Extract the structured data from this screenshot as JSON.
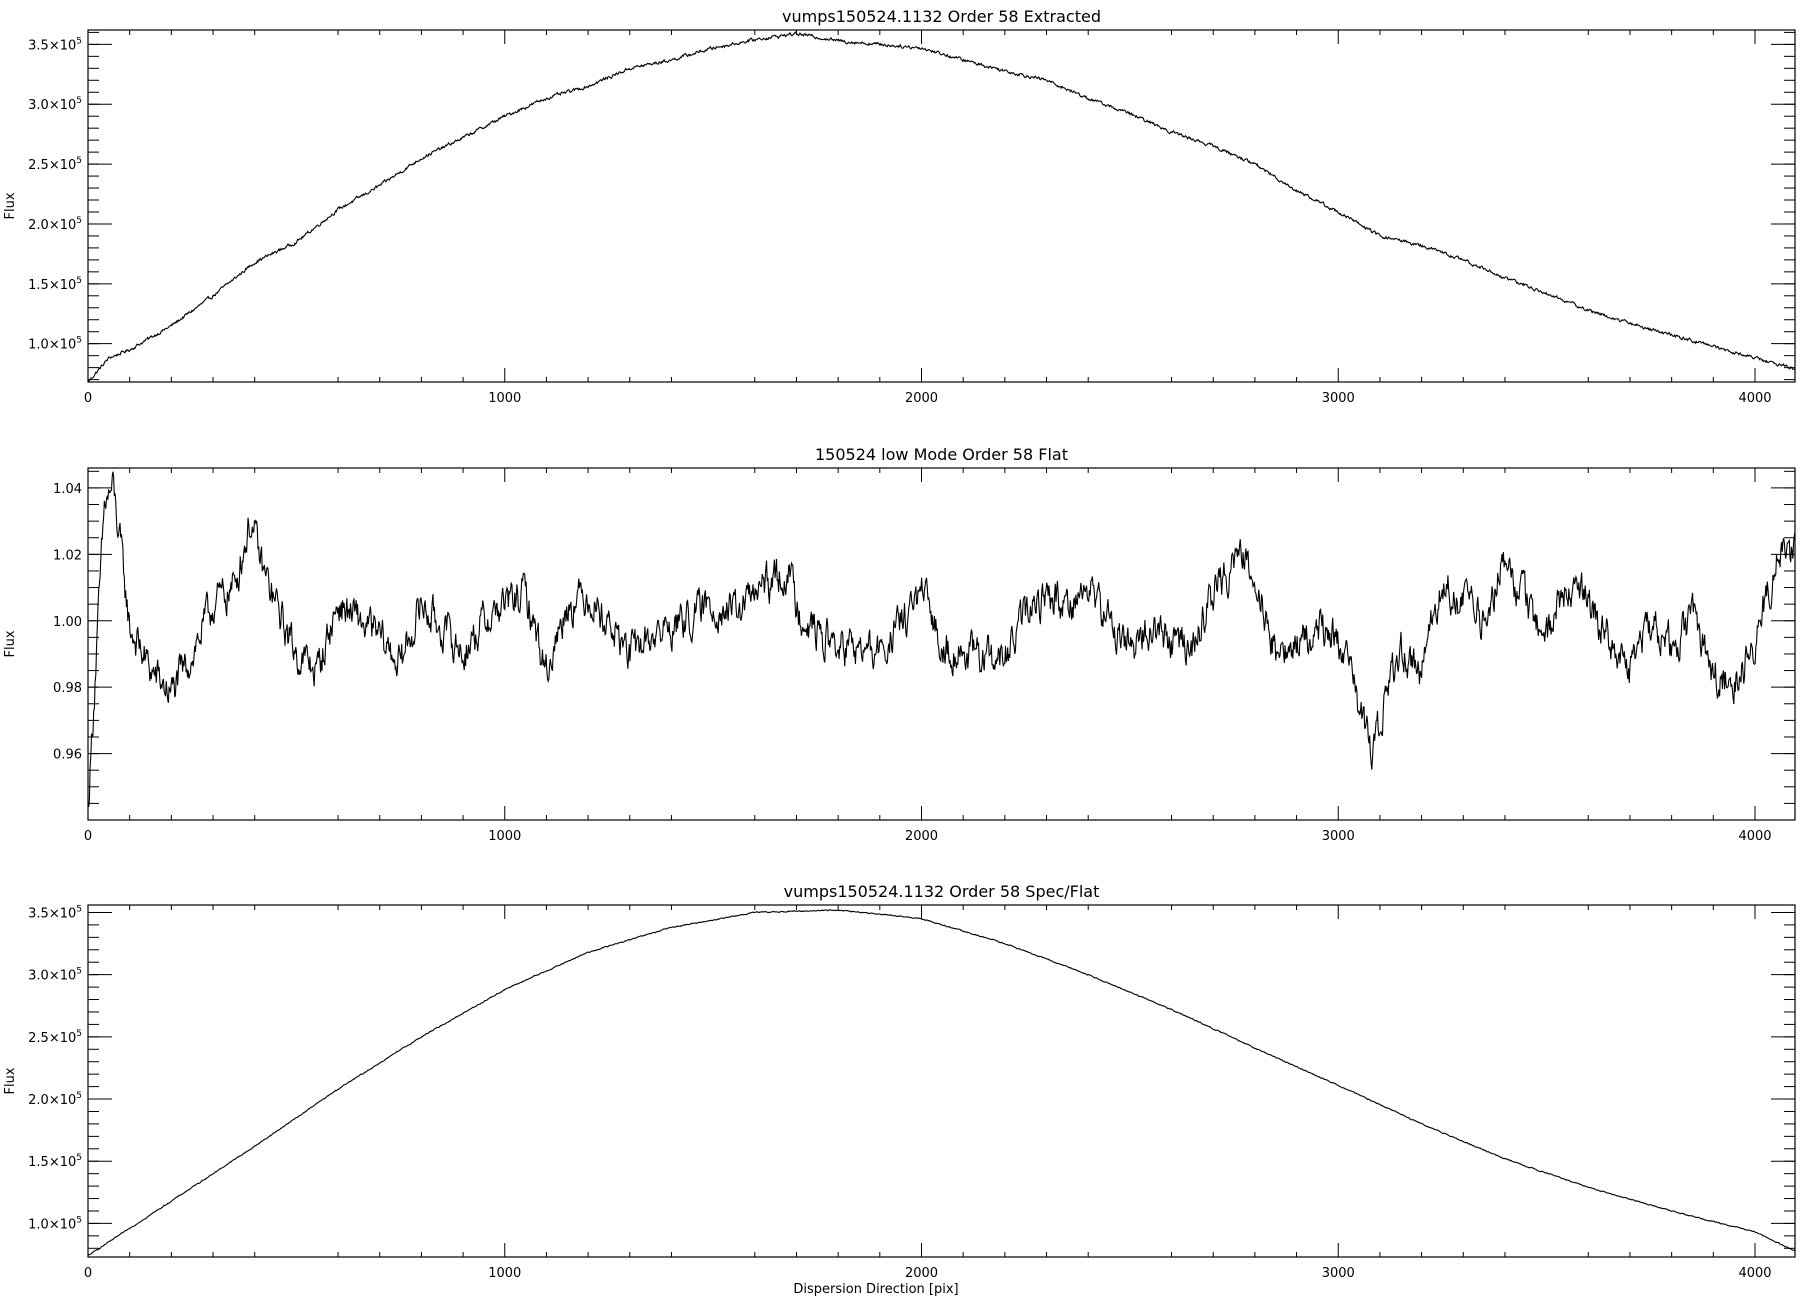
{
  "figure": {
    "xlabel": "Dispersion Direction [pix]"
  },
  "chart_data": [
    {
      "type": "line",
      "title": "vumps150524.1132 Order 58 Extracted",
      "ylabel": "Flux",
      "xlim": [
        0,
        4096
      ],
      "ylim": [
        68000,
        362000
      ],
      "grid": false,
      "x_ticks": [
        0,
        1000,
        2000,
        3000,
        4000
      ],
      "x_tick_labels": [
        "0",
        "1000",
        "2000",
        "3000",
        "4000"
      ],
      "y_ticks": [
        100000,
        150000,
        200000,
        250000,
        300000,
        350000
      ],
      "y_tick_labels": [
        [
          "1.0×10",
          "5"
        ],
        [
          "1.5×10",
          "5"
        ],
        [
          "2.0×10",
          "5"
        ],
        [
          "2.5×10",
          "5"
        ],
        [
          "3.0×10",
          "5"
        ],
        [
          "3.5×10",
          "5"
        ]
      ],
      "y_minor_step": 10000,
      "x_minor_step": 100,
      "noise_amp": 1100,
      "series": [
        {
          "x": [
            0,
            50,
            100,
            200,
            300,
            400,
            500,
            600,
            700,
            800,
            900,
            1000,
            1100,
            1200,
            1300,
            1400,
            1500,
            1600,
            1700,
            1800,
            1900,
            2000,
            2100,
            2200,
            2300,
            2400,
            2500,
            2600,
            2700,
            2800,
            2900,
            3000,
            3100,
            3200,
            3300,
            3400,
            3500,
            3600,
            3700,
            3800,
            3900,
            4000,
            4096
          ],
          "values": [
            68000,
            88000,
            95000,
            115000,
            140000,
            168000,
            185000,
            212000,
            232000,
            255000,
            272000,
            290000,
            305000,
            315000,
            330000,
            337000,
            347000,
            354000,
            359000,
            353000,
            350000,
            347000,
            337000,
            328000,
            320000,
            305000,
            292000,
            277000,
            265000,
            250000,
            228000,
            210000,
            190000,
            182000,
            170000,
            155000,
            142000,
            128000,
            117000,
            107000,
            98000,
            88000,
            79000
          ]
        }
      ]
    },
    {
      "type": "line",
      "title": "150524 low Mode Order 58 Flat",
      "ylabel": "Flux",
      "xlim": [
        0,
        4096
      ],
      "ylim": [
        0.94,
        1.046
      ],
      "grid": false,
      "x_ticks": [
        0,
        1000,
        2000,
        3000,
        4000
      ],
      "x_tick_labels": [
        "0",
        "1000",
        "2000",
        "3000",
        "4000"
      ],
      "y_ticks": [
        0.96,
        0.98,
        1.0,
        1.02,
        1.04
      ],
      "y_tick_labels": [
        [
          "0.96",
          ""
        ],
        [
          "0.98",
          ""
        ],
        [
          "1.00",
          ""
        ],
        [
          "1.02",
          ""
        ],
        [
          "1.04",
          ""
        ]
      ],
      "y_minor_step": 0.005,
      "x_minor_step": 100,
      "noise_amp": 0.0045,
      "series": [
        {
          "x": [
            0,
            20,
            40,
            60,
            80,
            100,
            150,
            200,
            250,
            300,
            350,
            390,
            420,
            450,
            500,
            550,
            600,
            700,
            750,
            800,
            900,
            950,
            1000,
            1050,
            1100,
            1150,
            1200,
            1300,
            1350,
            1400,
            1500,
            1550,
            1600,
            1680,
            1700,
            1750,
            1800,
            1900,
            2000,
            2050,
            2100,
            2200,
            2250,
            2300,
            2350,
            2400,
            2450,
            2500,
            2550,
            2600,
            2650,
            2700,
            2760,
            2800,
            2850,
            2900,
            2950,
            3000,
            3050,
            3080,
            3100,
            3150,
            3200,
            3250,
            3300,
            3350,
            3400,
            3450,
            3500,
            3550,
            3600,
            3650,
            3700,
            3750,
            3800,
            3850,
            3900,
            3950,
            4000,
            4050,
            4096
          ],
          "values": [
            0.943,
            0.99,
            1.035,
            1.04,
            1.02,
            0.998,
            0.985,
            0.978,
            0.99,
            1.005,
            1.01,
            1.03,
            1.015,
            1.005,
            0.99,
            0.985,
            1.005,
            0.995,
            0.987,
            1.005,
            0.99,
            1.0,
            1.005,
            1.008,
            0.985,
            1.005,
            1.008,
            0.99,
            0.995,
            0.998,
            1.005,
            1.002,
            1.008,
            1.015,
            1.005,
            0.996,
            0.992,
            0.99,
            1.008,
            0.993,
            0.99,
            0.988,
            1.002,
            1.008,
            1.005,
            1.01,
            1.0,
            0.992,
            0.998,
            0.994,
            0.992,
            1.008,
            1.02,
            1.015,
            0.99,
            0.992,
            0.998,
            0.995,
            0.975,
            0.96,
            0.97,
            0.992,
            0.985,
            1.012,
            1.005,
            1.0,
            1.018,
            1.005,
            0.995,
            1.012,
            1.005,
            0.995,
            0.985,
            1.0,
            0.994,
            1.0,
            0.985,
            0.98,
            0.995,
            1.018,
            1.022
          ]
        }
      ]
    },
    {
      "type": "line",
      "title": "vumps150524.1132 Order 58 Spec/Flat",
      "ylabel": "Flux",
      "xlim": [
        0,
        4096
      ],
      "ylim": [
        73000,
        356000
      ],
      "grid": false,
      "x_ticks": [
        0,
        1000,
        2000,
        3000,
        4000
      ],
      "x_tick_labels": [
        "0",
        "1000",
        "2000",
        "3000",
        "4000"
      ],
      "y_ticks": [
        100000,
        150000,
        200000,
        250000,
        300000,
        350000
      ],
      "y_tick_labels": [
        [
          "1.0×10",
          "5"
        ],
        [
          "1.5×10",
          "5"
        ],
        [
          "2.0×10",
          "5"
        ],
        [
          "2.5×10",
          "5"
        ],
        [
          "3.0×10",
          "5"
        ],
        [
          "3.5×10",
          "5"
        ]
      ],
      "y_minor_step": 10000,
      "x_minor_step": 100,
      "noise_amp": 350,
      "series": [
        {
          "x": [
            0,
            200,
            400,
            600,
            800,
            1000,
            1200,
            1400,
            1600,
            1800,
            2000,
            2200,
            2400,
            2600,
            2800,
            3000,
            3200,
            3400,
            3600,
            3800,
            4000,
            4096
          ],
          "values": [
            74000,
            118000,
            162000,
            208000,
            250000,
            288000,
            318000,
            338000,
            350000,
            352000,
            345000,
            325000,
            300000,
            272000,
            241000,
            211000,
            180000,
            152000,
            129000,
            110000,
            93000,
            78000
          ]
        }
      ]
    }
  ]
}
